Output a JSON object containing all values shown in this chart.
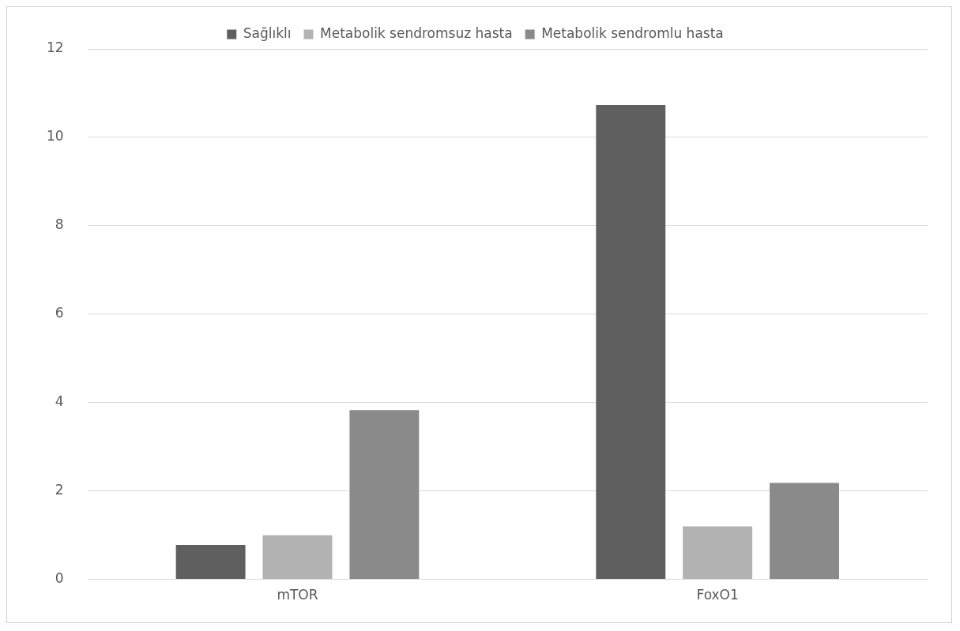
{
  "chart_data": {
    "type": "bar",
    "categories": [
      "mTOR",
      "FoxO1"
    ],
    "series": [
      {
        "name": "Sağlıklı",
        "color": "#5f5f5f",
        "values": [
          0.78,
          10.73
        ]
      },
      {
        "name": "Metabolik sendromsuz hasta",
        "color": "#b2b2b2",
        "values": [
          1.0,
          1.2
        ]
      },
      {
        "name": "Metabolik sendromlu hasta",
        "color": "#8a8a8a",
        "values": [
          3.83,
          2.18
        ]
      }
    ],
    "ylim": [
      0,
      12
    ],
    "yticks": [
      0,
      2,
      4,
      6,
      8,
      10,
      12
    ],
    "grid": "y",
    "legend": "top"
  }
}
